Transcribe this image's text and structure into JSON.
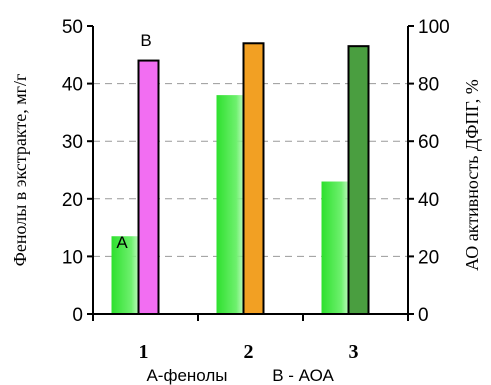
{
  "chart_data": {
    "type": "bar",
    "categories": [
      "1",
      "2",
      "3"
    ],
    "left_axis": {
      "label": "Фенолы в экстракте, мг/г",
      "ylim": [
        0,
        50
      ],
      "ticks": [
        "0",
        "10",
        "20",
        "30",
        "40",
        "50"
      ]
    },
    "right_axis": {
      "label": "АО активность ДФПГ, %",
      "ylim": [
        0,
        100
      ],
      "ticks": [
        "0",
        "20",
        "40",
        "60",
        "80",
        "100"
      ]
    },
    "series": [
      {
        "name": "А-фенолы",
        "axis": "left",
        "values": [
          13.5,
          38,
          23
        ]
      },
      {
        "name": "В - АОА",
        "axis": "right",
        "values": [
          88,
          94,
          93
        ]
      }
    ],
    "annotations": {
      "a_marker": "А",
      "b_marker": "В"
    },
    "legend_text": [
      "А-фенолы",
      "В - АОА"
    ],
    "grid": "dashed horizontal",
    "colors": {
      "phenols": "#5ee65e",
      "aoa": [
        "#f26ef2",
        "#f2a023",
        "#4a9e40"
      ]
    }
  }
}
